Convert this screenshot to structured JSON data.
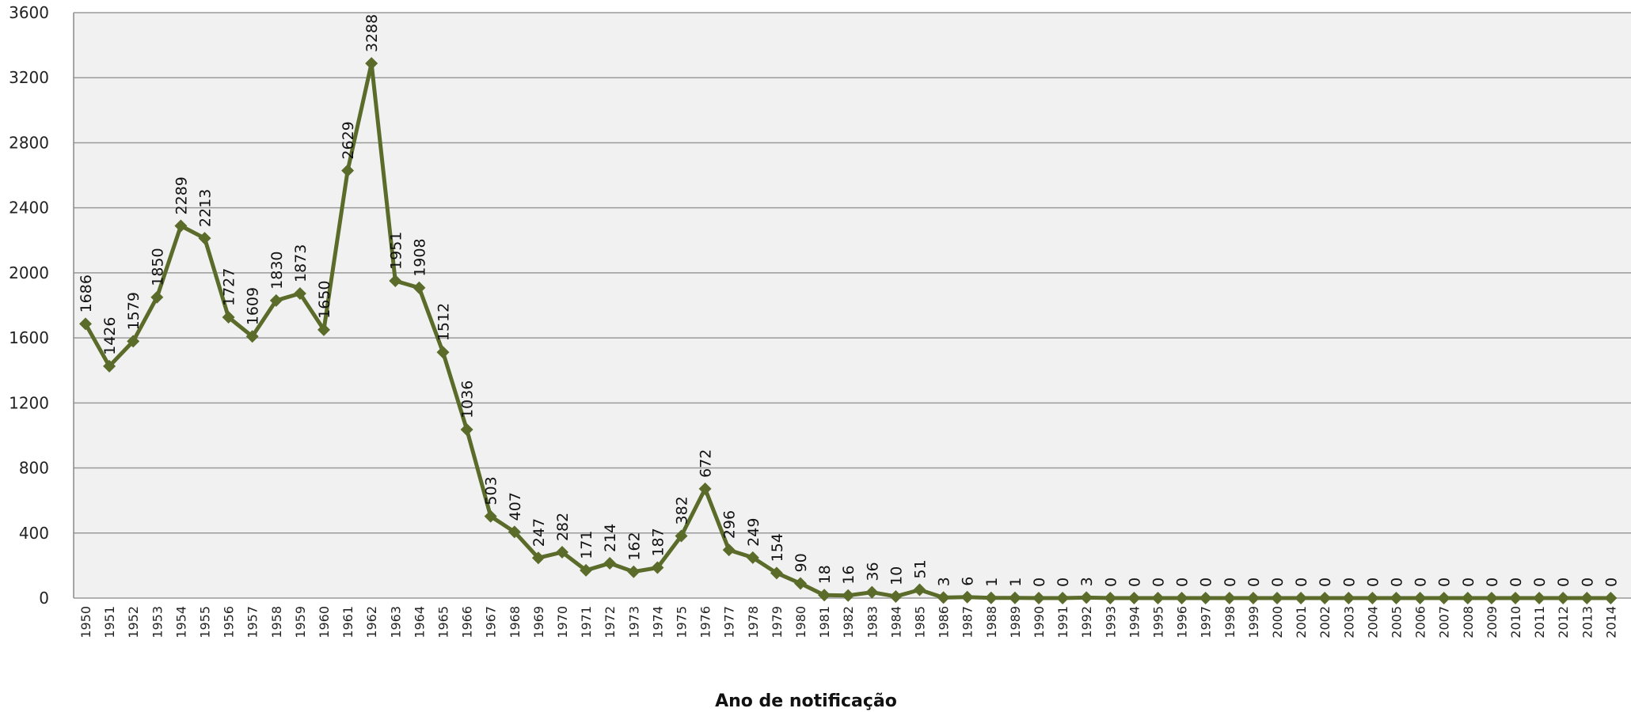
{
  "chart_data": {
    "type": "line",
    "title": "",
    "xlabel": "Ano de notificação",
    "ylabel": "",
    "ylim": [
      0,
      3600
    ],
    "yticks": [
      "0",
      "400",
      "800",
      "1200",
      "1600",
      "2000",
      "2400",
      "2800",
      "3200",
      "3600"
    ],
    "grid": true,
    "legend": "none",
    "colors": {
      "line": "#5a6b2a",
      "plot_bg": "#f1f1f1",
      "grid": "#9a9a9a"
    },
    "marker": "diamond",
    "categories": [
      "1950",
      "1951",
      "1952",
      "1953",
      "1954",
      "1955",
      "1956",
      "1957",
      "1958",
      "1959",
      "1960",
      "1961",
      "1962",
      "1963",
      "1964",
      "1965",
      "1966",
      "1967",
      "1968",
      "1969",
      "1970",
      "1971",
      "1972",
      "1973",
      "1974",
      "1975",
      "1976",
      "1977",
      "1978",
      "1979",
      "1980",
      "1981",
      "1982",
      "1983",
      "1984",
      "1985",
      "1986",
      "1987",
      "1988",
      "1989",
      "1990",
      "1991",
      "1992",
      "1993",
      "1994",
      "1995",
      "1996",
      "1997",
      "1998",
      "1999",
      "2000",
      "2001",
      "2002",
      "2003",
      "2004",
      "2005",
      "2006",
      "2007",
      "2008",
      "2009",
      "2010",
      "2011",
      "2012",
      "2013",
      "2014"
    ],
    "values": [
      1686,
      1426,
      1579,
      1850,
      2289,
      2213,
      1727,
      1609,
      1830,
      1873,
      1650,
      2629,
      3288,
      1951,
      1908,
      1512,
      1036,
      503,
      407,
      247,
      282,
      171,
      214,
      162,
      187,
      382,
      672,
      296,
      249,
      154,
      90,
      18,
      16,
      36,
      10,
      51,
      3,
      6,
      1,
      1,
      0,
      0,
      3,
      0,
      0,
      0,
      0,
      0,
      0,
      0,
      0,
      0,
      0,
      0,
      0,
      0,
      0,
      0,
      0,
      0,
      0,
      0,
      0,
      0,
      0
    ]
  }
}
